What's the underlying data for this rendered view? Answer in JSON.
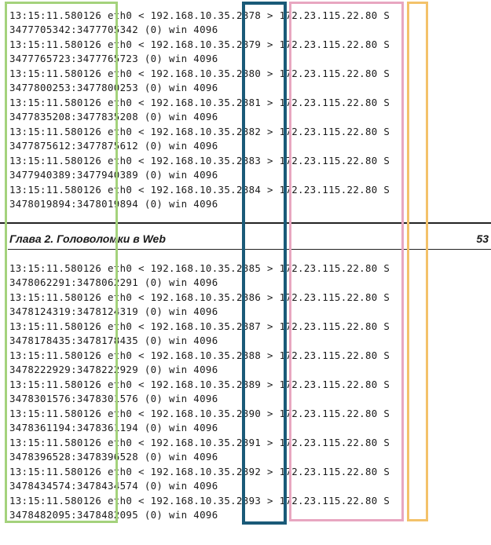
{
  "header": {
    "chapter_title": "Глава 2. Головоломки в Web",
    "page_number": "53"
  },
  "entries_top": [
    {
      "line1": "13:15:11.580126 eth0 < 192.168.10.35.2878 > 172.23.115.22.80 S",
      "line2": "3477705342:3477705342 (0) win 4096"
    },
    {
      "line1": "13:15:11.580126 eth0 < 192.168.10.35.2879 > 172.23.115.22.80 S",
      "line2": "3477765723:3477765723 (0) win 4096"
    },
    {
      "line1": "13:15:11.580126 eth0 < 192.168.10.35.2880 > 172.23.115.22.80 S",
      "line2": "3477800253:3477800253 (0) win 4096"
    },
    {
      "line1": "13:15:11.580126 eth0 < 192.168.10.35.2881 > 172.23.115.22.80 S",
      "line2": "3477835208:3477835208 (0) win 4096"
    },
    {
      "line1": "13:15:11.580126 eth0 < 192.168.10.35.2882 > 172.23.115.22.80 S",
      "line2": "3477875612:3477875612 (0) win 4096"
    },
    {
      "line1": "13:15:11.580126 eth0 < 192.168.10.35.2883 > 172.23.115.22.80 S",
      "line2": "3477940389:3477940389 (0) win 4096"
    },
    {
      "line1": "13:15:11.580126 eth0 < 192.168.10.35.2884 > 172.23.115.22.80 S",
      "line2": "3478019894:3478019894 (0) win 4096"
    }
  ],
  "entries_bottom": [
    {
      "line1": "13:15:11.580126 eth0 < 192.168.10.35.2885 > 172.23.115.22.80 S",
      "line2": "3478062291:3478062291 (0) win 4096"
    },
    {
      "line1": "13:15:11.580126 eth0 < 192.168.10.35.2886 > 172.23.115.22.80 S",
      "line2": "3478124319:3478124319 (0) win 4096"
    },
    {
      "line1": "13:15:11.580126 eth0 < 192.168.10.35.2887 > 172.23.115.22.80 S",
      "line2": "3478178435:3478178435 (0) win 4096"
    },
    {
      "line1": "13:15:11.580126 eth0 < 192.168.10.35.2888 > 172.23.115.22.80 S",
      "line2": "3478222929:3478222929 (0) win 4096"
    },
    {
      "line1": "13:15:11.580126 eth0 < 192.168.10.35.2889 > 172.23.115.22.80 S",
      "line2": "3478301576:3478301576 (0) win 4096"
    },
    {
      "line1": "13:15:11.580126 eth0 < 192.168.10.35.2890 > 172.23.115.22.80 S",
      "line2": "3478361194:3478361194 (0) win 4096"
    },
    {
      "line1": "13:15:11.580126 eth0 < 192.168.10.35.2891 > 172.23.115.22.80 S",
      "line2": "3478396528:3478396528 (0) win 4096"
    },
    {
      "line1": "13:15:11.580126 eth0 < 192.168.10.35.2892 > 172.23.115.22.80 S",
      "line2": "3478434574:3478434574 (0) win 4096"
    },
    {
      "line1": "13:15:11.580126 eth0 < 192.168.10.35.2893 > 172.23.115.22.80 S",
      "line2": "3478482095:3478482095 (0) win 4096"
    }
  ],
  "highlight_colors": {
    "green": "#a4d27c",
    "blue": "#1a5a78",
    "pink": "#e8a6c0",
    "orange": "#f3c26a"
  }
}
